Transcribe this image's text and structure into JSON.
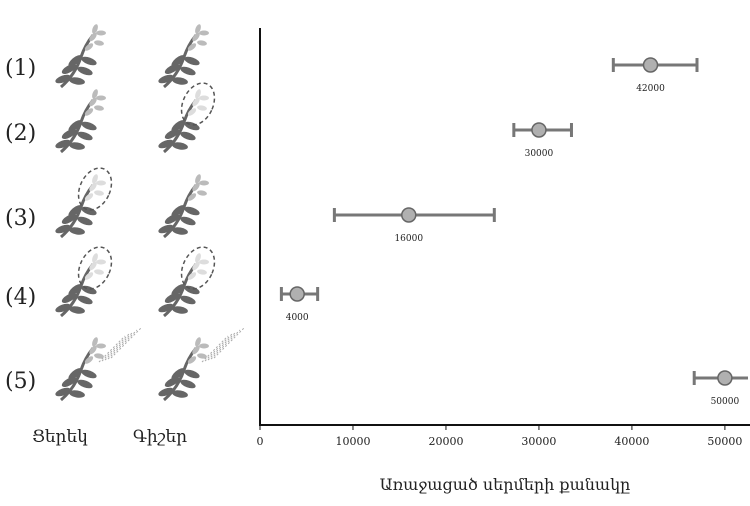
{
  "chart_data": {
    "type": "scatter",
    "categories": [
      "(1)",
      "(2)",
      "(3)",
      "(4)",
      "(5)"
    ],
    "columns": [
      "Ցերեկ",
      "Գիշեր"
    ],
    "values": [
      42000,
      30000,
      16000,
      4000,
      50000
    ],
    "err_low": [
      4000,
      2700,
      8000,
      1700,
      3300
    ],
    "err_high": [
      5000,
      3500,
      9200,
      2200,
      3300
    ],
    "xlabel": "Առաջացած սերմերի քանակը",
    "xlim": [
      0,
      52700
    ],
    "xticks": [
      0,
      10000,
      20000,
      30000,
      40000,
      50000
    ],
    "color": "#b0b0b0"
  }
}
